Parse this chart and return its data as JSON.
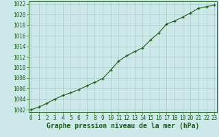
{
  "x": [
    0,
    1,
    2,
    3,
    4,
    5,
    6,
    7,
    8,
    9,
    10,
    11,
    12,
    13,
    14,
    15,
    16,
    17,
    18,
    19,
    20,
    21,
    22,
    23
  ],
  "y": [
    1002.0,
    1002.5,
    1003.2,
    1004.0,
    1004.7,
    1005.2,
    1005.8,
    1006.5,
    1007.2,
    1007.9,
    1009.5,
    1011.2,
    1012.2,
    1013.0,
    1013.7,
    1015.2,
    1016.5,
    1018.2,
    1018.8,
    1019.5,
    1020.3,
    1021.2,
    1021.5,
    1021.8
  ],
  "line_color": "#1a5c1a",
  "marker": "+",
  "marker_color": "#1a5c1a",
  "bg_color": "#cce8e8",
  "grid_color": "#aacccc",
  "axis_color": "#1a5c1a",
  "tick_label_color": "#1a5c1a",
  "xlabel": "Graphe pression niveau de la mer (hPa)",
  "xlabel_fontsize": 7,
  "tick_fontsize": 5.5,
  "ylim": [
    1001.5,
    1022.5
  ],
  "xlim": [
    -0.3,
    23.3
  ],
  "yticks": [
    1002,
    1004,
    1006,
    1008,
    1010,
    1012,
    1014,
    1016,
    1018,
    1020,
    1022
  ],
  "xticks": [
    0,
    1,
    2,
    3,
    4,
    5,
    6,
    7,
    8,
    9,
    10,
    11,
    12,
    13,
    14,
    15,
    16,
    17,
    18,
    19,
    20,
    21,
    22,
    23
  ]
}
